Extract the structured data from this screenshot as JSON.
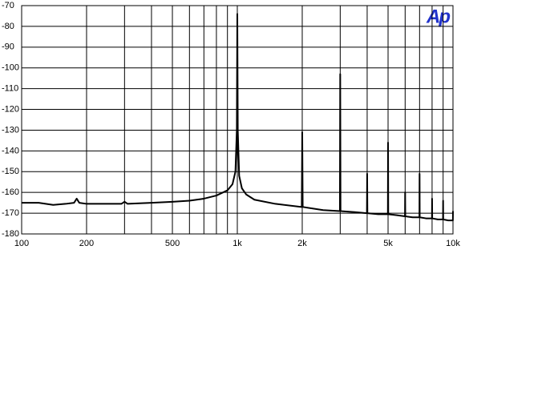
{
  "chart_data": {
    "type": "line",
    "logo": "Ap",
    "xscale": "log",
    "grid": true,
    "xlim": [
      100,
      10000
    ],
    "ylim": [
      -180,
      -70
    ],
    "yticks": [
      -70,
      -80,
      -90,
      -100,
      -110,
      -120,
      -130,
      -140,
      -150,
      -160,
      -170,
      -180
    ],
    "xticks": [
      100,
      200,
      500,
      {
        "value": 1000,
        "label": "1k"
      },
      {
        "value": 2000,
        "label": "2k"
      },
      {
        "value": 5000,
        "label": "5k"
      },
      {
        "value": 10000,
        "label": "10k"
      }
    ],
    "xminor": [
      300,
      400,
      600,
      700,
      800,
      900,
      3000,
      4000,
      6000,
      7000,
      8000,
      9000
    ],
    "series": [
      {
        "color": "#000000",
        "x": [
          100,
          120,
          140,
          160,
          175,
          180,
          185,
          200,
          250,
          290,
          300,
          310,
          400,
          500,
          600,
          700,
          800,
          900,
          950,
          980,
          995,
          1000,
          1005,
          1020,
          1050,
          1100,
          1200,
          1500,
          1990,
          2000,
          2010,
          2500,
          2990,
          3000,
          3010,
          3500,
          3990,
          4000,
          4010,
          4500,
          4990,
          5000,
          5010,
          5500,
          5990,
          6000,
          6010,
          6500,
          6990,
          7000,
          7010,
          7500,
          7990,
          8000,
          8010,
          8500,
          8990,
          9000,
          9010,
          9500,
          9990,
          10000
        ],
        "values": [
          -165,
          -165,
          -166,
          -165.5,
          -165,
          -163,
          -165,
          -165.5,
          -165.5,
          -165.5,
          -164.5,
          -165.5,
          -165,
          -164.5,
          -164,
          -163,
          -161.5,
          -159,
          -156,
          -150,
          -130,
          -74,
          -130,
          -152,
          -158,
          -161,
          -163.5,
          -165.5,
          -167,
          -131,
          -167,
          -168.5,
          -169,
          -103,
          -169,
          -169.5,
          -170,
          -151,
          -170,
          -170.5,
          -170.5,
          -136,
          -170.5,
          -171,
          -171.5,
          -160,
          -171.5,
          -172,
          -172,
          -151,
          -172,
          -172.5,
          -172.5,
          -163,
          -172.5,
          -173,
          -173,
          -164,
          -173,
          -173.5,
          -173.5,
          -169
        ]
      }
    ]
  }
}
